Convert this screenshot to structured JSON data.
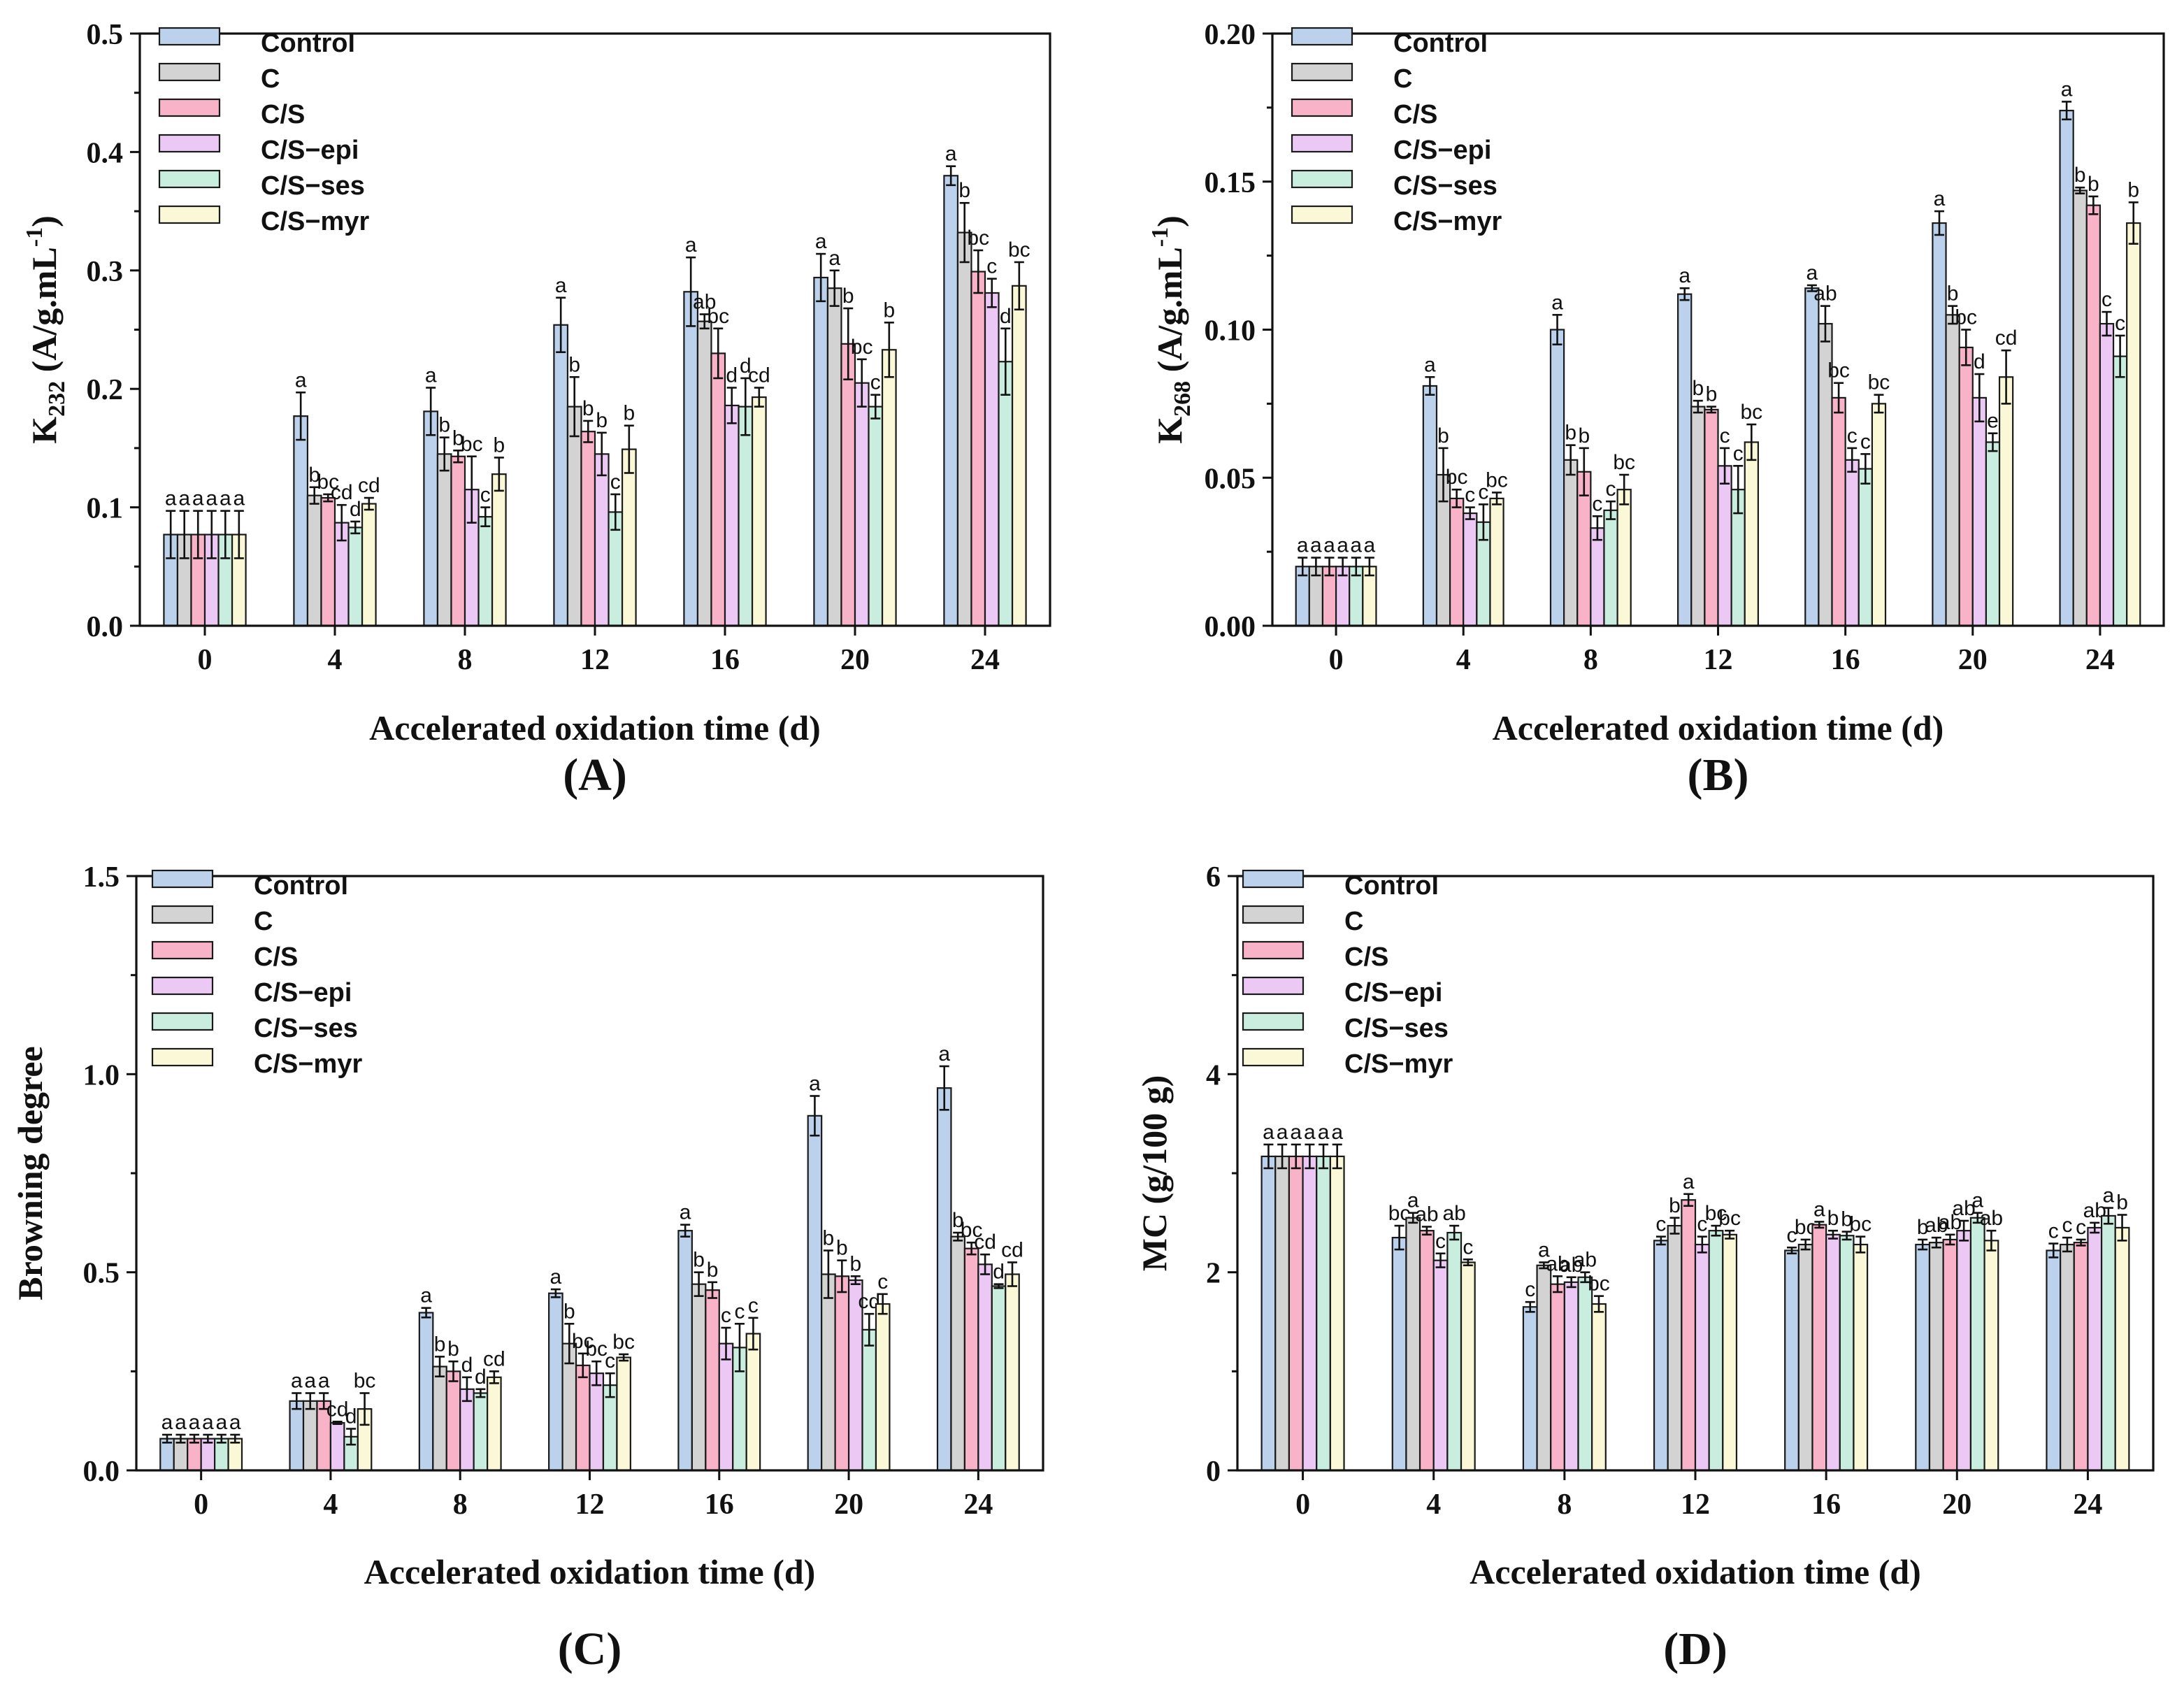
{
  "colors": {
    "Control": "#bcd2ec",
    "C": "#d3d3d3",
    "C/S": "#f8b3c8",
    "C/S-epi": "#ecc9f4",
    "C/S-ses": "#c9eedf",
    "C/S-myr": "#fbf8d8"
  },
  "chart_data": [
    {
      "type": "bar",
      "panel_label": "(A)",
      "ylabel_main": "K",
      "ylabel_sub": "232",
      "ylabel_rest": " (A/g.mL",
      "ylabel_sup": "-1",
      "ylabel_end": ")",
      "xlabel": "Accelerated oxidation time (d)",
      "ylim": [
        0,
        0.5
      ],
      "yticks": [
        "0.0",
        "0.1",
        "0.2",
        "0.3",
        "0.4",
        "0.5"
      ],
      "categories": [
        "0",
        "4",
        "8",
        "12",
        "16",
        "20",
        "24"
      ],
      "legend": [
        "Control",
        "C",
        "C/S",
        "C/S−epi",
        "C/S−ses",
        "C/S−myr"
      ],
      "series": [
        {
          "name": "Control",
          "values": [
            0.077,
            0.177,
            0.181,
            0.254,
            0.282,
            0.294,
            0.38
          ],
          "errors": [
            0.02,
            0.02,
            0.02,
            0.023,
            0.029,
            0.02,
            0.008
          ],
          "labels": [
            "a",
            "a",
            "a",
            "a",
            "a",
            "a",
            "a"
          ]
        },
        {
          "name": "C",
          "values": [
            0.077,
            0.11,
            0.145,
            0.185,
            0.257,
            0.285,
            0.332
          ],
          "errors": [
            0.02,
            0.007,
            0.014,
            0.025,
            0.006,
            0.015,
            0.025
          ],
          "labels": [
            "a",
            "b",
            "b",
            "b",
            "ab",
            "a",
            "b"
          ]
        },
        {
          "name": "C/S",
          "values": [
            0.077,
            0.108,
            0.143,
            0.164,
            0.23,
            0.238,
            0.299
          ],
          "errors": [
            0.02,
            0.003,
            0.005,
            0.009,
            0.021,
            0.03,
            0.018
          ],
          "labels": [
            "a",
            "bc",
            "b",
            "b",
            "bc",
            "b",
            "bc"
          ]
        },
        {
          "name": "C/S-epi",
          "values": [
            0.077,
            0.087,
            0.115,
            0.145,
            0.186,
            0.205,
            0.281
          ],
          "errors": [
            0.02,
            0.015,
            0.028,
            0.018,
            0.015,
            0.02,
            0.012
          ],
          "labels": [
            "a",
            "cd",
            "bc",
            "b",
            "d",
            "bc",
            "c"
          ]
        },
        {
          "name": "C/S-ses",
          "values": [
            0.077,
            0.083,
            0.092,
            0.096,
            0.185,
            0.185,
            0.223
          ],
          "errors": [
            0.02,
            0.005,
            0.008,
            0.015,
            0.024,
            0.01,
            0.028
          ],
          "labels": [
            "a",
            "d",
            "c",
            "c",
            "d",
            "c",
            "d"
          ]
        },
        {
          "name": "C/S-myr",
          "values": [
            0.077,
            0.103,
            0.128,
            0.149,
            0.193,
            0.233,
            0.287
          ],
          "errors": [
            0.02,
            0.005,
            0.014,
            0.02,
            0.008,
            0.023,
            0.02
          ],
          "labels": [
            "a",
            "cd",
            "b",
            "b",
            "cd",
            "b",
            "bc"
          ]
        }
      ]
    },
    {
      "type": "bar",
      "panel_label": "(B)",
      "ylabel_main": "K",
      "ylabel_sub": "268",
      "ylabel_rest": " (A/g.mL",
      "ylabel_sup": "-1",
      "ylabel_end": ")",
      "xlabel": "Accelerated oxidation time (d)",
      "ylim": [
        0,
        0.2
      ],
      "yticks": [
        "0.00",
        "0.05",
        "0.10",
        "0.15",
        "0.20"
      ],
      "categories": [
        "0",
        "4",
        "8",
        "12",
        "16",
        "20",
        "24"
      ],
      "legend": [
        "Control",
        "C",
        "C/S",
        "C/S−epi",
        "C/S−ses",
        "C/S−myr"
      ],
      "series": [
        {
          "name": "Control",
          "values": [
            0.02,
            0.081,
            0.1,
            0.112,
            0.114,
            0.136,
            0.174
          ],
          "errors": [
            0.003,
            0.003,
            0.005,
            0.002,
            0.001,
            0.004,
            0.003
          ],
          "labels": [
            "a",
            "a",
            "a",
            "a",
            "a",
            "a",
            "a"
          ]
        },
        {
          "name": "C",
          "values": [
            0.02,
            0.051,
            0.056,
            0.074,
            0.102,
            0.105,
            0.147
          ],
          "errors": [
            0.003,
            0.009,
            0.005,
            0.002,
            0.006,
            0.003,
            0.001
          ],
          "labels": [
            "a",
            "b",
            "b",
            "b",
            "ab",
            "b",
            "b"
          ]
        },
        {
          "name": "C/S",
          "values": [
            0.02,
            0.043,
            0.052,
            0.073,
            0.077,
            0.094,
            0.142
          ],
          "errors": [
            0.003,
            0.003,
            0.008,
            0.001,
            0.005,
            0.006,
            0.003
          ],
          "labels": [
            "a",
            "bc",
            "b",
            "b",
            "bc",
            "bc",
            "b"
          ]
        },
        {
          "name": "C/S-epi",
          "values": [
            0.02,
            0.038,
            0.033,
            0.054,
            0.056,
            0.077,
            0.102
          ],
          "errors": [
            0.003,
            0.002,
            0.004,
            0.006,
            0.004,
            0.008,
            0.004
          ],
          "labels": [
            "a",
            "c",
            "c",
            "c",
            "c",
            "d",
            "c"
          ]
        },
        {
          "name": "C/S-ses",
          "values": [
            0.02,
            0.035,
            0.039,
            0.046,
            0.053,
            0.062,
            0.091
          ],
          "errors": [
            0.003,
            0.006,
            0.003,
            0.008,
            0.005,
            0.003,
            0.007
          ],
          "labels": [
            "a",
            "c",
            "c",
            "c",
            "c",
            "e",
            "c"
          ]
        },
        {
          "name": "C/S-myr",
          "values": [
            0.02,
            0.043,
            0.046,
            0.062,
            0.075,
            0.084,
            0.136
          ],
          "errors": [
            0.003,
            0.002,
            0.005,
            0.006,
            0.003,
            0.009,
            0.007
          ],
          "labels": [
            "a",
            "bc",
            "bc",
            "bc",
            "bc",
            "cd",
            "b"
          ]
        }
      ]
    },
    {
      "type": "bar",
      "panel_label": "(C)",
      "ylabel_main": "Browning degree",
      "xlabel": "Accelerated oxidation time (d)",
      "ylim": [
        0,
        1.5
      ],
      "yticks": [
        "0.0",
        "0.5",
        "1.0",
        "1.5"
      ],
      "categories": [
        "0",
        "4",
        "8",
        "12",
        "16",
        "20",
        "24"
      ],
      "legend": [
        "Control",
        "C",
        "C/S",
        "C/S−epi",
        "C/S−ses",
        "C/S−myr"
      ],
      "series": [
        {
          "name": "Control",
          "values": [
            0.08,
            0.175,
            0.398,
            0.447,
            0.605,
            0.895,
            0.965
          ],
          "errors": [
            0.01,
            0.02,
            0.012,
            0.01,
            0.015,
            0.05,
            0.055
          ],
          "labels": [
            "a",
            "a",
            "a",
            "a",
            "a",
            "a",
            "a"
          ]
        },
        {
          "name": "C",
          "values": [
            0.08,
            0.175,
            0.262,
            0.32,
            0.47,
            0.495,
            0.59
          ],
          "errors": [
            0.01,
            0.02,
            0.025,
            0.05,
            0.03,
            0.06,
            0.01
          ],
          "labels": [
            "a",
            "a",
            "b",
            "b",
            "b",
            "b",
            "b"
          ]
        },
        {
          "name": "C/S",
          "values": [
            0.08,
            0.175,
            0.25,
            0.265,
            0.455,
            0.49,
            0.56
          ],
          "errors": [
            0.01,
            0.02,
            0.025,
            0.03,
            0.02,
            0.04,
            0.015
          ],
          "labels": [
            "a",
            "a",
            "b",
            "bc",
            "b",
            "b",
            "bc"
          ]
        },
        {
          "name": "C/S-epi",
          "values": [
            0.08,
            0.12,
            0.205,
            0.245,
            0.32,
            0.48,
            0.52
          ],
          "errors": [
            0.01,
            0.003,
            0.03,
            0.03,
            0.04,
            0.01,
            0.025
          ],
          "labels": [
            "a",
            "cd",
            "d",
            "bc",
            "c",
            "b",
            "cd"
          ]
        },
        {
          "name": "C/S-ses",
          "values": [
            0.08,
            0.085,
            0.195,
            0.215,
            0.31,
            0.355,
            0.465
          ],
          "errors": [
            0.01,
            0.02,
            0.01,
            0.03,
            0.06,
            0.04,
            0.005
          ],
          "labels": [
            "a",
            "d",
            "d",
            "c",
            "c",
            "cd",
            "d"
          ]
        },
        {
          "name": "C/S-myr",
          "values": [
            0.08,
            0.155,
            0.235,
            0.285,
            0.345,
            0.42,
            0.495
          ],
          "errors": [
            0.01,
            0.04,
            0.015,
            0.008,
            0.04,
            0.025,
            0.03
          ],
          "labels": [
            "a",
            "bc",
            "cd",
            "bc",
            "c",
            "c",
            "cd"
          ]
        }
      ]
    },
    {
      "type": "bar",
      "panel_label": "(D)",
      "ylabel_main": "MC (g/100 g)",
      "xlabel": "Accelerated oxidation time (d)",
      "ylim": [
        0,
        6
      ],
      "yticks": [
        "0",
        "2",
        "4",
        "6"
      ],
      "categories": [
        "0",
        "4",
        "8",
        "12",
        "16",
        "20",
        "24"
      ],
      "legend": [
        "Control",
        "C",
        "C/S",
        "C/S−epi",
        "C/S−ses",
        "C/S−myr"
      ],
      "series": [
        {
          "name": "Control",
          "values": [
            3.17,
            2.35,
            1.65,
            2.32,
            2.22,
            2.28,
            2.22
          ],
          "errors": [
            0.12,
            0.12,
            0.05,
            0.04,
            0.03,
            0.05,
            0.07
          ],
          "labels": [
            "a",
            "bc",
            "c",
            "c",
            "c",
            "b",
            "c"
          ]
        },
        {
          "name": "C",
          "values": [
            3.17,
            2.55,
            2.07,
            2.47,
            2.28,
            2.3,
            2.28
          ],
          "errors": [
            0.12,
            0.05,
            0.03,
            0.08,
            0.05,
            0.05,
            0.07
          ],
          "labels": [
            "a",
            "a",
            "a",
            "b",
            "bc",
            "ab",
            "c"
          ]
        },
        {
          "name": "C/S",
          "values": [
            3.17,
            2.42,
            1.88,
            2.73,
            2.48,
            2.33,
            2.3
          ],
          "errors": [
            0.12,
            0.04,
            0.08,
            0.06,
            0.03,
            0.05,
            0.03
          ],
          "labels": [
            "a",
            "ab",
            "ab",
            "a",
            "a",
            "ab",
            "c"
          ]
        },
        {
          "name": "C/S-epi",
          "values": [
            3.17,
            2.12,
            1.9,
            2.28,
            2.38,
            2.42,
            2.45
          ],
          "errors": [
            0.12,
            0.07,
            0.05,
            0.08,
            0.04,
            0.1,
            0.05
          ],
          "labels": [
            "a",
            "c",
            "ab",
            "c",
            "b",
            "ab",
            "ab"
          ]
        },
        {
          "name": "C/S-ses",
          "values": [
            3.17,
            2.4,
            1.95,
            2.42,
            2.37,
            2.55,
            2.57
          ],
          "errors": [
            0.12,
            0.07,
            0.05,
            0.05,
            0.04,
            0.05,
            0.08
          ],
          "labels": [
            "a",
            "ab",
            "ab",
            "bc",
            "b",
            "a",
            "a"
          ]
        },
        {
          "name": "C/S-myr",
          "values": [
            3.17,
            2.1,
            1.68,
            2.38,
            2.28,
            2.32,
            2.45
          ],
          "errors": [
            0.12,
            0.03,
            0.08,
            0.04,
            0.08,
            0.1,
            0.13
          ],
          "labels": [
            "a",
            "c",
            "bc",
            "bc",
            "bc",
            "ab",
            "b"
          ]
        }
      ]
    }
  ]
}
